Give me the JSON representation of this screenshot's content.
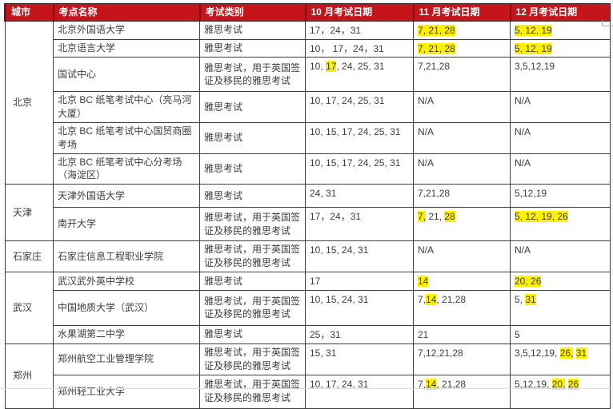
{
  "colors": {
    "header_bg": "#c3151b",
    "header_divider": "#801014",
    "grid": "#3f3f3f",
    "text": "#3c3c3c",
    "highlight": "#fdf000"
  },
  "table": {
    "columns": [
      "城市",
      "考点名称",
      "考试类别",
      "10 月考试日期",
      "11 月考试日期",
      "12 月考试日期"
    ],
    "groups": [
      {
        "city": "北京",
        "rows": [
          {
            "venue": "北京外国语大学",
            "category": "雅思考试",
            "oct": [
              {
                "t": "17，24，31"
              }
            ],
            "nov": [
              {
                "t": "7, 21, 28",
                "h": true
              }
            ],
            "dec": [
              {
                "t": "5, 12, 19",
                "h": true
              }
            ]
          },
          {
            "venue": "北京语言大学",
            "category": "雅思考试",
            "oct": [
              {
                "t": "10， 17，24，31"
              }
            ],
            "nov": [
              {
                "t": "7, 21, 28",
                "h": true
              }
            ],
            "dec": [
              {
                "t": "5, 12, 19",
                "h": true
              }
            ]
          },
          {
            "venue": "国试中心",
            "category": "雅思考试，用于英国签证及移民的雅思考试",
            "oct": [
              {
                "t": "10, "
              },
              {
                "t": "17",
                "h": true
              },
              {
                "t": ", 24, 25, 31"
              }
            ],
            "nov": [
              {
                "t": "7,21,28"
              }
            ],
            "dec": [
              {
                "t": "3,5,12,19"
              }
            ]
          },
          {
            "venue": "北京 BC 纸笔考试中心（亮马河大厦）",
            "category": "雅思考试",
            "oct": [
              {
                "t": "10, 17, 24, 25, 31"
              }
            ],
            "nov": [
              {
                "t": "N/A"
              }
            ],
            "dec": [
              {
                "t": "N/A"
              }
            ]
          },
          {
            "venue": "北京 BC 纸笔考试中心国贸商圈考场",
            "category": "雅思考试",
            "oct": [
              {
                "t": "10, 15, 17, 24, 25, 31"
              }
            ],
            "nov": [
              {
                "t": "N/A"
              }
            ],
            "dec": [
              {
                "t": "N/A"
              }
            ]
          },
          {
            "venue": "北京 BC 纸笔考试中心分考场（海淀区）",
            "category": "雅思考试",
            "oct": [
              {
                "t": "10, 15, 17, 24, 25, 31"
              }
            ],
            "nov": [
              {
                "t": "N/A"
              }
            ],
            "dec": [
              {
                "t": "N/A"
              }
            ]
          }
        ]
      },
      {
        "city": "天津",
        "rows": [
          {
            "venue": "天津外国语大学",
            "category": "雅思考试",
            "oct": [
              {
                "t": "24, 31"
              }
            ],
            "nov": [
              {
                "t": "7,21,28"
              }
            ],
            "dec": [
              {
                "t": "5,12,19"
              }
            ]
          },
          {
            "venue": "南开大学",
            "category": "雅思考试，用于英国签证及移民的雅思考试",
            "oct": [
              {
                "t": "17，24，31"
              }
            ],
            "nov": [
              {
                "t": "7,",
                "h": true
              },
              {
                "t": " 21, "
              },
              {
                "t": "28",
                "h": true
              }
            ],
            "dec": [
              {
                "t": "5, 12, 19, 26",
                "h": true
              }
            ]
          }
        ]
      },
      {
        "city": "石家庄",
        "rows": [
          {
            "venue": "石家庄信息工程职业学院",
            "category": "雅思考试，用于英国签证及移民的雅思考试",
            "oct": [
              {
                "t": "10, 15, 24, 31"
              }
            ],
            "nov": [
              {
                "t": "N/A"
              }
            ],
            "dec": [
              {
                "t": "N/A"
              }
            ]
          }
        ]
      },
      {
        "city": "武汉",
        "rows": [
          {
            "venue": "武汉武外英中学校",
            "category": "雅思考试",
            "oct": [
              {
                "t": "17"
              }
            ],
            "nov": [
              {
                "t": "14",
                "h": true
              }
            ],
            "dec": [
              {
                "t": "20, 26",
                "h": true
              }
            ]
          },
          {
            "venue": "中国地质大学（武汉）",
            "category": "雅思考试，用于英国签证及移民的雅思考试",
            "oct": [
              {
                "t": "10, 15, 24, 31"
              }
            ],
            "nov": [
              {
                "t": "7,"
              },
              {
                "t": "14",
                "h": true
              },
              {
                "t": ", 21,28"
              }
            ],
            "dec": [
              {
                "t": "5, "
              },
              {
                "t": "31",
                "h": true
              }
            ]
          },
          {
            "venue": "水果湖第二中学",
            "category": "雅思考试",
            "oct": [
              {
                "t": "25，31"
              }
            ],
            "nov": [
              {
                "t": "21"
              }
            ],
            "dec": [
              {
                "t": "5"
              }
            ]
          }
        ]
      },
      {
        "city": "郑州",
        "rows": [
          {
            "venue": "郑州航空工业管理学院",
            "category": "雅思考试，用于英国签证及移民的雅思考试",
            "oct": [
              {
                "t": "15, 31"
              }
            ],
            "nov": [
              {
                "t": "7,12,21,28"
              }
            ],
            "dec": [
              {
                "t": "3,5,12,19, "
              },
              {
                "t": "26,",
                "h": true
              },
              {
                "t": " "
              },
              {
                "t": "31",
                "h": true
              }
            ]
          },
          {
            "venue": "郑州轻工业大学",
            "category": "雅思考试，用于英国签证及移民的雅思考试",
            "oct": [
              {
                "t": "10, 17, 24, 31"
              }
            ],
            "nov": [
              {
                "t": "7,"
              },
              {
                "t": "14",
                "h": true
              },
              {
                "t": ", 21,28"
              }
            ],
            "dec": [
              {
                "t": "5,12,19, "
              },
              {
                "t": "20,",
                "h": true
              },
              {
                "t": " "
              },
              {
                "t": "26",
                "h": true
              }
            ]
          }
        ]
      }
    ]
  }
}
